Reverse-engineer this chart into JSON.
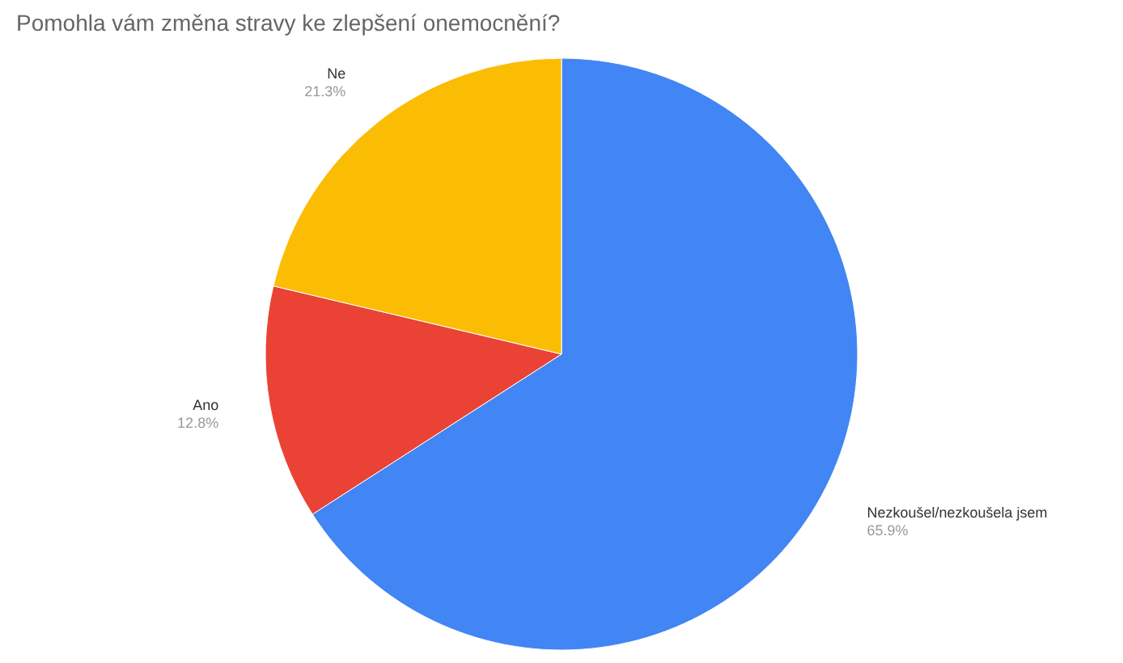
{
  "chart_data": {
    "type": "pie",
    "title": "Pomohla vám změna stravy ke zlepšení onemocnění?",
    "categories": [
      "Nezkoušel/nezkoušela jsem",
      "Ano",
      "Ne"
    ],
    "values": [
      65.9,
      12.8,
      21.3
    ],
    "value_labels": [
      "65.9%",
      "12.8%",
      "21.3%"
    ],
    "colors": [
      "#4285f4",
      "#ea4335",
      "#fbbc04"
    ]
  }
}
